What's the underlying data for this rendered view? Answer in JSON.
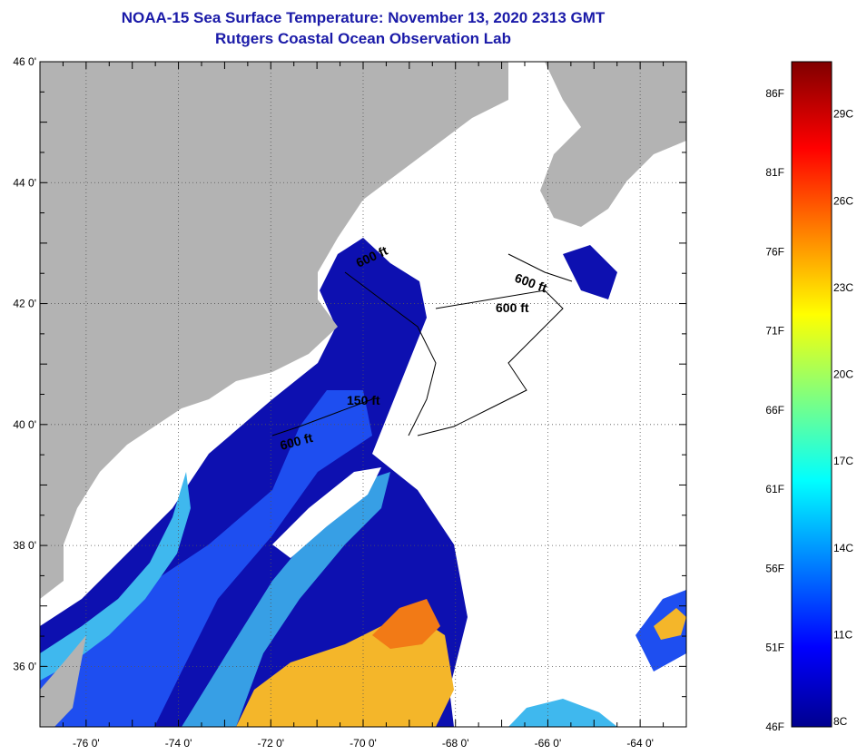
{
  "header": {
    "title": "NOAA-15 Sea Surface Temperature:  November 13, 2020 2313 GMT",
    "subtitle": "Rutgers Coastal Ocean Observation Lab"
  },
  "map": {
    "lon_range": [
      -77,
      -63
    ],
    "lat_range": [
      35,
      46
    ],
    "lon_ticks": [
      "-76 0'",
      "-74 0'",
      "-72 0'",
      "-70 0'",
      "-68 0'",
      "-66 0'",
      "-64 0'"
    ],
    "lat_ticks": [
      "46 0'",
      "44 0'",
      "42 0'",
      "40 0'",
      "38 0'",
      "36 0'"
    ],
    "contour_labels": [
      "600 ft",
      "600 ft",
      "600 ft",
      "150 ft",
      "600 ft"
    ],
    "colors": {
      "land": "#b3b3b3",
      "cloud": "#ffffff",
      "cold_water": "#0d10b0",
      "mid_water": "#1e4ef0",
      "shelf_water": "#3fb8ee",
      "warm_water": "#f4b62a",
      "hot_water": "#f27a16"
    }
  },
  "colorbar": {
    "fahrenheit_labels": [
      "86F",
      "81F",
      "76F",
      "71F",
      "66F",
      "61F",
      "56F",
      "51F",
      "46F"
    ],
    "celsius_labels": [
      "29C",
      "26C",
      "23C",
      "20C",
      "17C",
      "14C",
      "11C",
      "8C"
    ],
    "f_range": [
      46,
      88
    ],
    "c_range": [
      8,
      31
    ]
  }
}
